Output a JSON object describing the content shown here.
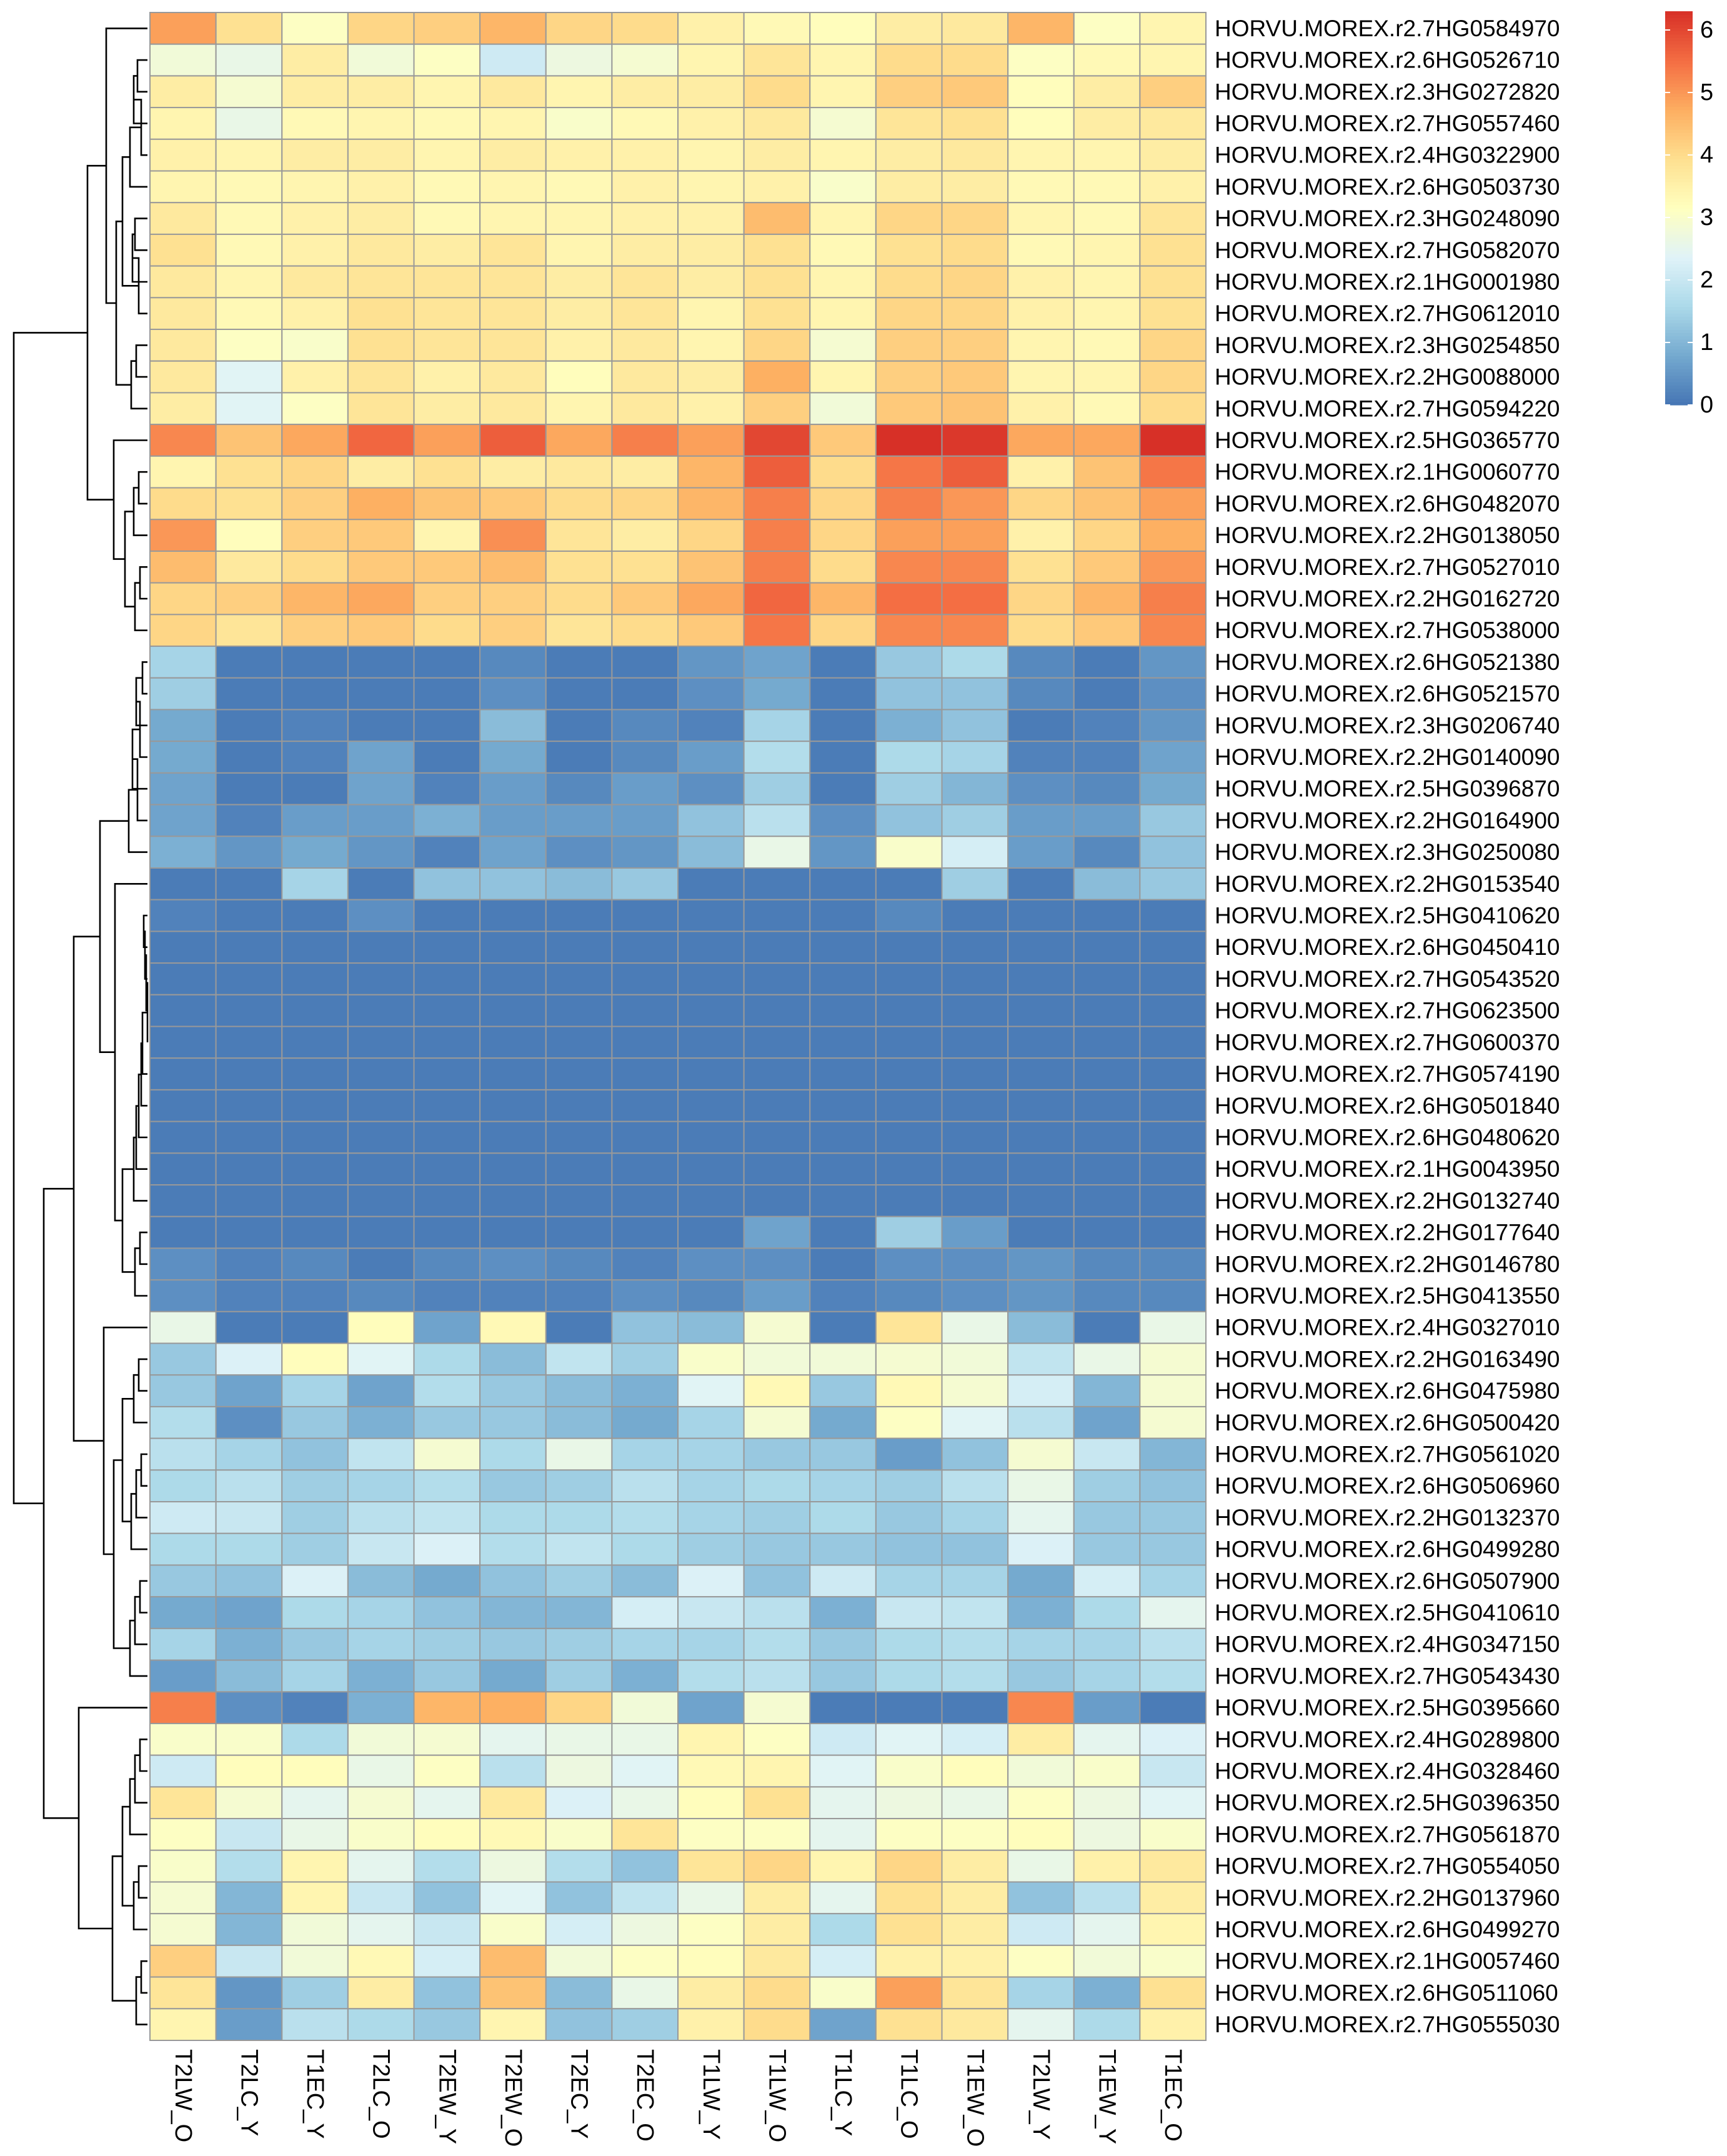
{
  "chart_data": {
    "type": "heatmap",
    "title": "",
    "columns": [
      "T2LW_O",
      "T2LC_Y",
      "T1EC_Y",
      "T2LC_O",
      "T2EW_Y",
      "T2EW_O",
      "T2EC_Y",
      "T2EC_O",
      "T1LW_Y",
      "T1LW_O",
      "T1LC_Y",
      "T1LC_O",
      "T1EW_O",
      "T2LW_Y",
      "T1EW_Y",
      "T1EC_O"
    ],
    "rows": [
      "HORVU.MOREX.r2.7HG0584970",
      "HORVU.MOREX.r2.6HG0526710",
      "HORVU.MOREX.r2.3HG0272820",
      "HORVU.MOREX.r2.7HG0557460",
      "HORVU.MOREX.r2.4HG0322900",
      "HORVU.MOREX.r2.6HG0503730",
      "HORVU.MOREX.r2.3HG0248090",
      "HORVU.MOREX.r2.7HG0582070",
      "HORVU.MOREX.r2.1HG0001980",
      "HORVU.MOREX.r2.7HG0612010",
      "HORVU.MOREX.r2.3HG0254850",
      "HORVU.MOREX.r2.2HG0088000",
      "HORVU.MOREX.r2.7HG0594220",
      "HORVU.MOREX.r2.5HG0365770",
      "HORVU.MOREX.r2.1HG0060770",
      "HORVU.MOREX.r2.6HG0482070",
      "HORVU.MOREX.r2.2HG0138050",
      "HORVU.MOREX.r2.7HG0527010",
      "HORVU.MOREX.r2.2HG0162720",
      "HORVU.MOREX.r2.7HG0538000",
      "HORVU.MOREX.r2.6HG0521380",
      "HORVU.MOREX.r2.6HG0521570",
      "HORVU.MOREX.r2.3HG0206740",
      "HORVU.MOREX.r2.2HG0140090",
      "HORVU.MOREX.r2.5HG0396870",
      "HORVU.MOREX.r2.2HG0164900",
      "HORVU.MOREX.r2.3HG0250080",
      "HORVU.MOREX.r2.2HG0153540",
      "HORVU.MOREX.r2.5HG0410620",
      "HORVU.MOREX.r2.6HG0450410",
      "HORVU.MOREX.r2.7HG0543520",
      "HORVU.MOREX.r2.7HG0623500",
      "HORVU.MOREX.r2.7HG0600370",
      "HORVU.MOREX.r2.7HG0574190",
      "HORVU.MOREX.r2.6HG0501840",
      "HORVU.MOREX.r2.6HG0480620",
      "HORVU.MOREX.r2.1HG0043950",
      "HORVU.MOREX.r2.2HG0132740",
      "HORVU.MOREX.r2.2HG0177640",
      "HORVU.MOREX.r2.2HG0146780",
      "HORVU.MOREX.r2.5HG0413550",
      "HORVU.MOREX.r2.4HG0327010",
      "HORVU.MOREX.r2.2HG0163490",
      "HORVU.MOREX.r2.6HG0475980",
      "HORVU.MOREX.r2.6HG0500420",
      "HORVU.MOREX.r2.7HG0561020",
      "HORVU.MOREX.r2.6HG0506960",
      "HORVU.MOREX.r2.2HG0132370",
      "HORVU.MOREX.r2.6HG0499280",
      "HORVU.MOREX.r2.6HG0507900",
      "HORVU.MOREX.r2.5HG0410610",
      "HORVU.MOREX.r2.4HG0347150",
      "HORVU.MOREX.r2.7HG0543430",
      "HORVU.MOREX.r2.5HG0395660",
      "HORVU.MOREX.r2.4HG0289800",
      "HORVU.MOREX.r2.4HG0328460",
      "HORVU.MOREX.r2.5HG0396350",
      "HORVU.MOREX.r2.7HG0561870",
      "HORVU.MOREX.r2.7HG0554050",
      "HORVU.MOREX.r2.2HG0137960",
      "HORVU.MOREX.r2.6HG0499270",
      "HORVU.MOREX.r2.1HG0057460",
      "HORVU.MOREX.r2.6HG0511060",
      "HORVU.MOREX.r2.7HG0555030"
    ],
    "values": [
      [
        4.9,
        3.9,
        3.1,
        4.1,
        4.2,
        4.6,
        4.1,
        4.0,
        3.5,
        3.3,
        3.2,
        3.6,
        3.7,
        4.6,
        3.1,
        3.4
      ],
      [
        2.8,
        2.6,
        3.6,
        2.8,
        3.1,
        2.1,
        2.7,
        2.9,
        3.4,
        3.8,
        3.4,
        4.0,
        4.0,
        3.1,
        3.3,
        3.4
      ],
      [
        3.6,
        2.9,
        3.6,
        3.6,
        3.4,
        3.7,
        3.4,
        3.6,
        3.6,
        4.0,
        3.4,
        4.2,
        4.3,
        3.2,
        3.6,
        4.2
      ],
      [
        3.4,
        2.6,
        3.3,
        3.4,
        3.3,
        3.4,
        3.0,
        3.3,
        3.5,
        3.7,
        2.9,
        3.8,
        3.9,
        3.2,
        3.6,
        3.7
      ],
      [
        3.5,
        3.4,
        3.6,
        3.6,
        3.4,
        3.6,
        3.5,
        3.5,
        3.4,
        3.6,
        3.4,
        3.6,
        3.7,
        3.4,
        3.4,
        3.6
      ],
      [
        3.4,
        3.3,
        3.4,
        3.5,
        3.3,
        3.4,
        3.3,
        3.5,
        3.4,
        3.5,
        3.0,
        3.6,
        3.6,
        3.3,
        3.3,
        3.5
      ],
      [
        3.7,
        3.3,
        3.5,
        3.6,
        3.3,
        3.4,
        3.4,
        3.5,
        3.5,
        4.5,
        3.4,
        4.1,
        4.1,
        3.4,
        3.3,
        3.8
      ],
      [
        3.9,
        3.3,
        3.5,
        3.7,
        3.6,
        3.8,
        3.4,
        3.6,
        3.6,
        3.9,
        3.3,
        3.9,
        4.0,
        3.3,
        3.4,
        3.9
      ],
      [
        3.7,
        3.4,
        3.7,
        3.8,
        3.8,
        3.8,
        3.6,
        3.8,
        3.6,
        3.9,
        3.4,
        4.0,
        4.1,
        3.5,
        3.4,
        3.9
      ],
      [
        3.7,
        3.3,
        3.5,
        3.9,
        3.8,
        3.8,
        3.6,
        3.8,
        3.4,
        3.9,
        3.4,
        4.1,
        4.1,
        3.5,
        3.4,
        3.9
      ],
      [
        3.7,
        3.1,
        3.0,
        3.9,
        3.8,
        3.8,
        3.5,
        3.7,
        3.4,
        4.1,
        2.9,
        4.2,
        4.2,
        3.4,
        3.3,
        4.1
      ],
      [
        3.7,
        2.4,
        3.5,
        3.8,
        3.5,
        3.7,
        3.2,
        3.7,
        3.6,
        4.7,
        3.4,
        4.2,
        4.3,
        3.4,
        3.4,
        4.1
      ],
      [
        3.6,
        2.4,
        3.1,
        3.8,
        3.6,
        3.7,
        3.4,
        3.7,
        3.5,
        4.2,
        2.8,
        4.3,
        4.4,
        3.5,
        3.3,
        4.0
      ],
      [
        5.2,
        4.4,
        4.8,
        5.6,
        4.9,
        5.7,
        4.8,
        5.3,
        4.9,
        6.0,
        4.3,
        6.3,
        6.2,
        4.8,
        4.8,
        6.4
      ],
      [
        3.4,
        3.9,
        4.1,
        3.6,
        3.9,
        3.6,
        3.7,
        3.6,
        4.6,
        5.7,
        4.0,
        5.4,
        5.7,
        3.5,
        4.4,
        5.4
      ],
      [
        4.0,
        3.9,
        4.2,
        4.7,
        4.4,
        4.3,
        4.0,
        4.1,
        4.6,
        5.3,
        4.1,
        5.3,
        5.0,
        4.1,
        4.4,
        4.9
      ],
      [
        5.0,
        3.2,
        4.2,
        4.3,
        3.4,
        5.1,
        3.8,
        3.6,
        4.1,
        5.3,
        4.1,
        4.9,
        4.9,
        3.5,
        4.1,
        4.7
      ],
      [
        4.5,
        3.7,
        4.0,
        4.3,
        4.3,
        4.5,
        3.9,
        3.9,
        4.4,
        5.3,
        4.0,
        5.2,
        5.2,
        3.9,
        4.3,
        5.0
      ],
      [
        4.1,
        4.2,
        4.6,
        4.8,
        4.2,
        4.2,
        4.0,
        4.3,
        4.8,
        5.6,
        4.6,
        5.5,
        5.5,
        4.1,
        4.6,
        5.3
      ],
      [
        4.1,
        3.8,
        4.2,
        4.3,
        4.0,
        4.2,
        3.8,
        4.0,
        4.3,
        5.4,
        4.1,
        5.2,
        5.2,
        4.0,
        4.3,
        5.2
      ],
      [
        1.5,
        0.1,
        0.1,
        0.1,
        0.1,
        0.3,
        0.1,
        0.1,
        0.5,
        0.7,
        0.1,
        1.3,
        1.6,
        0.3,
        0.1,
        0.5
      ],
      [
        1.4,
        0.1,
        0.1,
        0.1,
        0.1,
        0.4,
        0.1,
        0.1,
        0.4,
        0.8,
        0.1,
        1.2,
        1.2,
        0.3,
        0.1,
        0.4
      ],
      [
        0.8,
        0.1,
        0.2,
        0.1,
        0.1,
        1.1,
        0.1,
        0.3,
        0.2,
        1.5,
        0.1,
        0.9,
        1.2,
        0.1,
        0.2,
        0.5
      ],
      [
        0.8,
        0.1,
        0.2,
        0.7,
        0.1,
        0.8,
        0.1,
        0.3,
        0.6,
        1.7,
        0.1,
        1.6,
        1.5,
        0.2,
        0.2,
        0.7
      ],
      [
        0.7,
        0.1,
        0.1,
        0.7,
        0.2,
        0.6,
        0.3,
        0.6,
        0.4,
        1.4,
        0.1,
        1.4,
        1.0,
        0.4,
        0.3,
        0.8
      ],
      [
        0.7,
        0.2,
        0.6,
        0.6,
        0.9,
        0.6,
        0.6,
        0.6,
        1.2,
        1.8,
        0.4,
        1.2,
        1.4,
        0.6,
        0.6,
        1.3
      ],
      [
        0.9,
        0.5,
        0.8,
        0.5,
        0.2,
        0.7,
        0.4,
        0.5,
        1.1,
        2.6,
        0.5,
        3.0,
        2.2,
        0.6,
        0.3,
        1.2
      ],
      [
        0.1,
        0.1,
        1.5,
        0.1,
        1.2,
        1.2,
        1.1,
        1.3,
        0.1,
        0.1,
        0.1,
        0.1,
        1.4,
        0.1,
        1.1,
        1.3
      ],
      [
        0.2,
        0.1,
        0.1,
        0.4,
        0.1,
        0.1,
        0.1,
        0.1,
        0.1,
        0.1,
        0.1,
        0.3,
        0.1,
        0.1,
        0.1,
        0.1
      ],
      [
        0.1,
        0.1,
        0.1,
        0.1,
        0.1,
        0.1,
        0.1,
        0.1,
        0.1,
        0.1,
        0.1,
        0.1,
        0.1,
        0.1,
        0.1,
        0.1
      ],
      [
        0.1,
        0.1,
        0.1,
        0.1,
        0.1,
        0.1,
        0.1,
        0.1,
        0.1,
        0.1,
        0.1,
        0.1,
        0.1,
        0.1,
        0.1,
        0.1
      ],
      [
        0.1,
        0.1,
        0.1,
        0.1,
        0.1,
        0.1,
        0.1,
        0.1,
        0.1,
        0.1,
        0.1,
        0.1,
        0.1,
        0.1,
        0.1,
        0.1
      ],
      [
        0.1,
        0.1,
        0.1,
        0.1,
        0.1,
        0.1,
        0.1,
        0.1,
        0.1,
        0.1,
        0.1,
        0.1,
        0.1,
        0.1,
        0.1,
        0.1
      ],
      [
        0.1,
        0.1,
        0.1,
        0.1,
        0.1,
        0.1,
        0.1,
        0.1,
        0.1,
        0.1,
        0.1,
        0.1,
        0.1,
        0.1,
        0.1,
        0.1
      ],
      [
        0.1,
        0.1,
        0.1,
        0.1,
        0.1,
        0.1,
        0.1,
        0.1,
        0.1,
        0.1,
        0.1,
        0.1,
        0.1,
        0.1,
        0.1,
        0.1
      ],
      [
        0.1,
        0.1,
        0.1,
        0.1,
        0.1,
        0.1,
        0.1,
        0.1,
        0.1,
        0.1,
        0.1,
        0.1,
        0.1,
        0.1,
        0.1,
        0.1
      ],
      [
        0.1,
        0.1,
        0.1,
        0.1,
        0.1,
        0.1,
        0.1,
        0.1,
        0.1,
        0.1,
        0.1,
        0.1,
        0.1,
        0.1,
        0.1,
        0.1
      ],
      [
        0.1,
        0.1,
        0.1,
        0.1,
        0.1,
        0.1,
        0.1,
        0.1,
        0.1,
        0.1,
        0.1,
        0.1,
        0.1,
        0.1,
        0.1,
        0.1
      ],
      [
        0.1,
        0.1,
        0.1,
        0.1,
        0.1,
        0.1,
        0.1,
        0.1,
        0.1,
        0.7,
        0.1,
        1.4,
        0.6,
        0.1,
        0.1,
        0.1
      ],
      [
        0.4,
        0.2,
        0.3,
        0.1,
        0.3,
        0.4,
        0.3,
        0.2,
        0.4,
        0.4,
        0.1,
        0.4,
        0.4,
        0.5,
        0.3,
        0.3
      ],
      [
        0.4,
        0.2,
        0.2,
        0.3,
        0.2,
        0.2,
        0.2,
        0.4,
        0.3,
        0.6,
        0.2,
        0.3,
        0.4,
        0.5,
        0.3,
        0.3
      ],
      [
        2.6,
        0.1,
        0.1,
        3.2,
        0.7,
        3.3,
        0.1,
        1.2,
        1.1,
        2.9,
        0.1,
        3.8,
        2.6,
        1.1,
        0.1,
        2.6
      ],
      [
        1.3,
        2.3,
        3.2,
        2.4,
        1.6,
        1.1,
        1.9,
        1.4,
        3.0,
        2.8,
        2.8,
        2.9,
        2.8,
        1.9,
        2.6,
        2.9
      ],
      [
        1.3,
        0.7,
        1.5,
        0.7,
        1.7,
        1.3,
        1.1,
        0.9,
        2.4,
        3.3,
        1.3,
        3.3,
        2.9,
        2.2,
        1.0,
        2.9
      ],
      [
        1.7,
        0.4,
        1.3,
        0.9,
        1.3,
        1.3,
        1.1,
        0.8,
        1.5,
        2.9,
        0.8,
        3.1,
        2.4,
        1.8,
        0.7,
        2.9
      ],
      [
        1.8,
        1.5,
        1.2,
        1.9,
        2.9,
        1.6,
        2.6,
        1.5,
        1.5,
        1.3,
        1.3,
        0.6,
        1.2,
        2.9,
        2.0,
        1.0
      ],
      [
        1.6,
        1.8,
        1.4,
        1.5,
        1.7,
        1.3,
        1.4,
        1.8,
        1.5,
        1.6,
        1.5,
        1.4,
        1.8,
        2.6,
        1.4,
        1.2
      ],
      [
        2.1,
        2.0,
        1.4,
        1.8,
        1.9,
        1.6,
        1.6,
        1.7,
        1.5,
        1.4,
        1.6,
        1.3,
        1.5,
        2.5,
        1.3,
        1.3
      ],
      [
        1.6,
        1.6,
        1.4,
        2.0,
        2.3,
        1.7,
        1.9,
        1.6,
        1.4,
        1.3,
        1.3,
        1.2,
        1.2,
        2.3,
        1.3,
        1.3
      ],
      [
        1.3,
        1.2,
        2.3,
        1.1,
        0.8,
        1.2,
        1.4,
        1.1,
        2.3,
        1.2,
        2.1,
        1.5,
        1.5,
        0.8,
        2.2,
        1.5
      ],
      [
        0.8,
        0.7,
        1.6,
        1.5,
        1.2,
        1.0,
        1.0,
        2.2,
        2.0,
        1.8,
        0.9,
        2.0,
        1.9,
        0.9,
        1.6,
        2.5
      ],
      [
        1.5,
        0.9,
        1.3,
        1.5,
        1.4,
        1.3,
        1.4,
        1.5,
        1.5,
        1.7,
        1.3,
        1.6,
        1.7,
        1.5,
        1.5,
        1.8
      ],
      [
        0.6,
        1.1,
        1.5,
        0.9,
        1.3,
        0.8,
        1.4,
        0.9,
        1.7,
        1.8,
        1.3,
        1.6,
        1.7,
        1.3,
        1.5,
        1.7
      ],
      [
        5.3,
        0.4,
        0.2,
        0.9,
        4.6,
        4.7,
        4.1,
        2.8,
        0.7,
        2.9,
        0.1,
        0.1,
        0.1,
        5.2,
        0.6,
        0.1
      ],
      [
        3.0,
        3.0,
        1.6,
        2.8,
        2.9,
        2.5,
        2.6,
        2.6,
        3.4,
        3.1,
        2.1,
        2.4,
        2.2,
        3.6,
        2.5,
        2.3
      ],
      [
        2.1,
        3.2,
        3.2,
        2.6,
        3.1,
        1.8,
        2.7,
        2.4,
        3.3,
        3.4,
        2.4,
        3.0,
        3.2,
        2.8,
        3.0,
        2.0
      ],
      [
        3.8,
        2.9,
        2.5,
        2.9,
        2.5,
        3.7,
        2.3,
        2.6,
        3.2,
        3.9,
        2.5,
        2.7,
        2.6,
        3.1,
        2.7,
        2.4
      ],
      [
        3.1,
        2.0,
        2.6,
        3.0,
        3.2,
        3.3,
        3.0,
        3.8,
        3.1,
        3.1,
        2.5,
        3.1,
        3.1,
        3.2,
        2.7,
        3.0
      ],
      [
        3.0,
        1.7,
        3.4,
        2.5,
        1.7,
        2.7,
        1.7,
        1.2,
        3.8,
        4.1,
        3.4,
        4.1,
        3.6,
        2.6,
        3.5,
        3.7
      ],
      [
        2.9,
        1.0,
        3.4,
        2.0,
        1.2,
        2.4,
        1.2,
        1.9,
        2.6,
        3.6,
        2.5,
        3.9,
        3.6,
        1.2,
        1.8,
        3.6
      ],
      [
        2.9,
        1.0,
        2.8,
        2.5,
        2.0,
        3.0,
        2.2,
        2.7,
        3.1,
        3.6,
        1.6,
        3.9,
        3.6,
        2.1,
        2.5,
        3.4
      ],
      [
        4.2,
        2.0,
        2.8,
        3.3,
        2.2,
        4.5,
        2.8,
        3.1,
        3.2,
        3.7,
        2.2,
        3.5,
        3.5,
        3.1,
        2.8,
        3.0
      ],
      [
        3.8,
        0.5,
        1.4,
        3.6,
        1.2,
        4.4,
        1.1,
        2.6,
        3.6,
        4.0,
        3.0,
        4.9,
        3.8,
        1.5,
        0.9,
        3.9
      ],
      [
        3.4,
        0.6,
        1.8,
        1.6,
        1.3,
        3.4,
        1.2,
        1.4,
        3.5,
        4.0,
        0.7,
        3.9,
        3.7,
        2.5,
        1.6,
        3.5
      ]
    ],
    "colorbar": {
      "min": 0,
      "max": 6.3,
      "ticks": [
        0,
        1,
        2,
        3,
        4,
        5,
        6
      ]
    },
    "colors": [
      "#4575b4",
      "#74a9cf",
      "#abd9e9",
      "#e0f3f8",
      "#ffffbf",
      "#fee090",
      "#fdae61",
      "#f46d43",
      "#d73027"
    ],
    "grid_color": "#999999",
    "row_dendrogram": true,
    "cluster_order_note": ""
  }
}
